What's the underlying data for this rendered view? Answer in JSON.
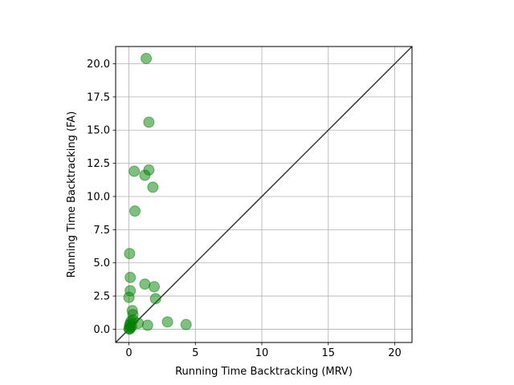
{
  "chart_data": {
    "type": "scatter",
    "title": "",
    "xlabel": "Running Time Backtracking (MRV)",
    "ylabel": "Running Time Backtracking (FA)",
    "xlim": [
      -1.0,
      21.3
    ],
    "ylim": [
      -1.0,
      21.3
    ],
    "xticks": [
      0,
      5,
      10,
      15,
      20
    ],
    "xtick_labels": [
      "0",
      "5",
      "10",
      "15",
      "20"
    ],
    "yticks": [
      0.0,
      2.5,
      5.0,
      7.5,
      10.0,
      12.5,
      15.0,
      17.5,
      20.0
    ],
    "ytick_labels": [
      "0.0",
      "2.5",
      "5.0",
      "7.5",
      "10.0",
      "12.5",
      "15.0",
      "17.5",
      "20.0"
    ],
    "grid": true,
    "diagonal": {
      "from": [
        -1.0,
        -1.0
      ],
      "to": [
        21.3,
        21.3
      ],
      "color": "#333333"
    },
    "marker_color": "#008000",
    "marker_alpha": 0.5,
    "series": [
      {
        "x": [
          1.3,
          1.5,
          1.5,
          0.4,
          1.2,
          1.8,
          0.45,
          0.05,
          0.1,
          1.2,
          1.9,
          0.1,
          2.0,
          0.0,
          0.25,
          0.3,
          0.3,
          2.9,
          4.3,
          1.4,
          0.7,
          0.15,
          0.1,
          0.05,
          0.2,
          0.0,
          0.05,
          0.1
        ],
        "y": [
          20.4,
          15.6,
          12.0,
          11.9,
          11.6,
          10.7,
          8.9,
          5.7,
          3.9,
          3.4,
          3.2,
          2.9,
          2.3,
          2.4,
          1.4,
          1.1,
          0.7,
          0.55,
          0.35,
          0.3,
          0.45,
          0.6,
          0.4,
          0.3,
          0.2,
          0.05,
          0.0,
          0.1
        ]
      }
    ]
  }
}
